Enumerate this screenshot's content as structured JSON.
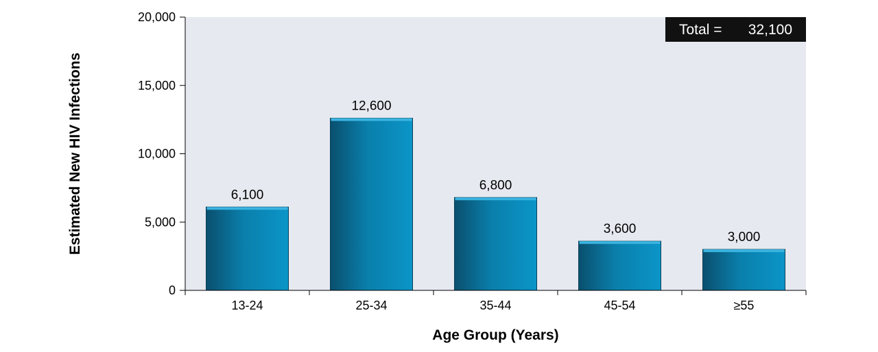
{
  "chart_data": {
    "type": "bar",
    "categories": [
      "13-24",
      "25-34",
      "35-44",
      "45-54",
      "≥55"
    ],
    "values": [
      6100,
      12600,
      6800,
      3600,
      3000
    ],
    "data_labels": [
      "6,100",
      "12,600",
      "6,800",
      "3,600",
      "3,000"
    ],
    "title": "",
    "xlabel": "Age Group (Years)",
    "ylabel": "Estimated New HIV Infections",
    "ylim": [
      0,
      20000
    ],
    "yticks": [
      0,
      5000,
      10000,
      15000,
      20000
    ],
    "ytick_labels": [
      "0",
      "5,000",
      "10,000",
      "15,000",
      "20,000"
    ],
    "grid": false,
    "legend": "none",
    "annotation": {
      "label": "Total =",
      "value": "32,100",
      "placement": "top-right"
    },
    "colors": {
      "plot_background": "#e6e9ef",
      "bar_dark": "#0a4f6e",
      "bar_mid": "#0a7fab",
      "bar_light": "#0b95c8",
      "bar_top": "#3bb4e0",
      "annotation_background": "#111111",
      "annotation_text": "#ffffff"
    }
  }
}
